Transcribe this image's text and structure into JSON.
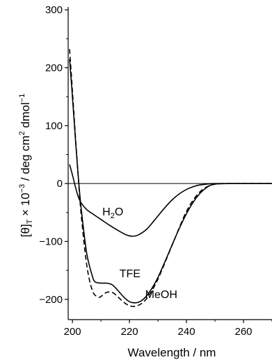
{
  "chart_data": {
    "type": "line",
    "xlabel": "Wavelength / nm",
    "ylabel_parts": {
      "a": "[θ]",
      "a_sub": "T",
      "b": " × 10",
      "b_sup": "−3",
      "c": " / deg cm",
      "c_sup": "2",
      "d": " dmol",
      "d_sup": "−1"
    },
    "xlim": [
      198.5,
      270
    ],
    "ylim": [
      -235,
      305
    ],
    "x_ticks": [
      200,
      220,
      240,
      260
    ],
    "y_ticks": [
      -200,
      -100,
      0,
      100,
      200,
      300
    ],
    "zero_line": true,
    "series": [
      {
        "name": "H2O",
        "label_parts": {
          "main": "H",
          "sub": "2",
          "tail": "O"
        },
        "label_at": {
          "x": 210.5,
          "y": -55
        },
        "dash": "solid",
        "x": [
          199,
          200,
          201,
          202,
          203,
          205,
          207,
          210,
          213,
          216,
          219,
          221,
          223,
          226,
          229,
          232,
          235,
          238,
          241,
          244,
          247,
          250,
          255,
          260,
          265,
          270
        ],
        "y": [
          33,
          15,
          -5,
          -22,
          -33,
          -45,
          -52,
          -62,
          -72,
          -81,
          -89,
          -91,
          -89,
          -79,
          -62,
          -44,
          -28,
          -16,
          -8,
          -3,
          -1,
          0,
          0,
          0,
          0,
          0
        ]
      },
      {
        "name": "TFE",
        "label_parts": {
          "main": "TFE"
        },
        "label_at": {
          "x": 216.5,
          "y": -162
        },
        "dash": "solid",
        "x": [
          199,
          200,
          201,
          202,
          203,
          205,
          207,
          208,
          210,
          212,
          214,
          216,
          218,
          220,
          222,
          224,
          226,
          228,
          230,
          232,
          234,
          236,
          238,
          240,
          242,
          244,
          246,
          248,
          250,
          255,
          260,
          265,
          270
        ],
        "y": [
          215,
          150,
          80,
          15,
          -40,
          -120,
          -160,
          -170,
          -172,
          -172,
          -175,
          -185,
          -196,
          -204,
          -206,
          -203,
          -194,
          -180,
          -162,
          -140,
          -117,
          -94,
          -72,
          -52,
          -35,
          -21,
          -11,
          -4,
          -1,
          0,
          0,
          0,
          0
        ]
      },
      {
        "name": "MeOH",
        "label_parts": {
          "main": "MeOH"
        },
        "label_at": {
          "x": 225.5,
          "y": -198
        },
        "dash": "dashed",
        "x": [
          199,
          200,
          201,
          202,
          203,
          205,
          207,
          209,
          210,
          212,
          214,
          216,
          218,
          220,
          222,
          224,
          226,
          228,
          230,
          232,
          234,
          236,
          238,
          240,
          242,
          244,
          246,
          248,
          250,
          252,
          255,
          260,
          265,
          270
        ],
        "y": [
          232,
          160,
          85,
          15,
          -50,
          -140,
          -185,
          -196,
          -195,
          -188,
          -188,
          -196,
          -205,
          -211,
          -212,
          -208,
          -199,
          -184,
          -165,
          -142,
          -118,
          -94,
          -70,
          -48,
          -31,
          -18,
          -9,
          -4,
          -1,
          0,
          0,
          0,
          0,
          0
        ]
      }
    ]
  }
}
